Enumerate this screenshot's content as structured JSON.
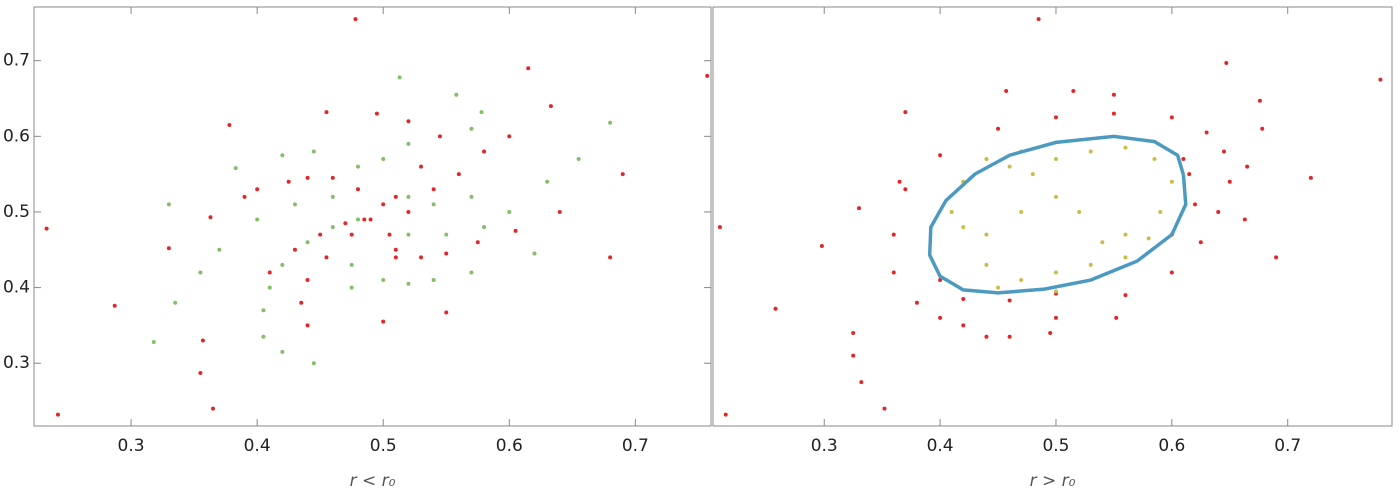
{
  "chart_data": [
    {
      "type": "scatter",
      "xlabel": "r < r₀",
      "xlim": [
        0.223,
        0.76
      ],
      "ylim": [
        0.217,
        0.771
      ],
      "xticks": [
        0.3,
        0.4,
        0.5,
        0.6,
        0.7
      ],
      "yticks": [
        0.3,
        0.4,
        0.5,
        0.6,
        0.7
      ],
      "series": [
        {
          "color": "#86bd6b",
          "x": [
            0.33,
            0.335,
            0.318,
            0.355,
            0.37,
            0.383,
            0.42,
            0.445,
            0.513,
            0.558,
            0.578,
            0.68,
            0.655,
            0.63,
            0.62,
            0.57,
            0.54,
            0.52,
            0.445,
            0.42,
            0.405,
            0.405,
            0.41,
            0.42,
            0.44,
            0.46,
            0.48,
            0.475,
            0.475,
            0.5,
            0.52,
            0.55,
            0.58,
            0.6,
            0.52,
            0.54,
            0.57,
            0.58,
            0.57,
            0.52,
            0.5,
            0.48,
            0.46,
            0.43,
            0.4
          ],
          "y": [
            0.51,
            0.38,
            0.328,
            0.42,
            0.45,
            0.558,
            0.575,
            0.58,
            0.678,
            0.655,
            0.632,
            0.618,
            0.57,
            0.54,
            0.445,
            0.42,
            0.41,
            0.405,
            0.3,
            0.315,
            0.335,
            0.37,
            0.4,
            0.43,
            0.46,
            0.48,
            0.49,
            0.43,
            0.4,
            0.41,
            0.47,
            0.47,
            0.48,
            0.5,
            0.52,
            0.51,
            0.52,
            0.58,
            0.61,
            0.59,
            0.57,
            0.56,
            0.52,
            0.51,
            0.49
          ]
        },
        {
          "color": "#e0282a",
          "x": [
            0.233,
            0.242,
            0.287,
            0.355,
            0.357,
            0.365,
            0.378,
            0.363,
            0.39,
            0.4,
            0.455,
            0.478,
            0.495,
            0.615,
            0.633,
            0.757,
            0.69,
            0.68,
            0.64,
            0.605,
            0.55,
            0.5,
            0.33,
            0.425,
            0.52,
            0.575,
            0.41,
            0.43,
            0.45,
            0.47,
            0.485,
            0.44,
            0.435,
            0.44,
            0.455,
            0.475,
            0.49,
            0.51,
            0.53,
            0.55,
            0.505,
            0.51,
            0.52,
            0.54,
            0.56,
            0.58,
            0.6,
            0.5,
            0.48,
            0.46,
            0.44,
            0.51,
            0.53,
            0.545
          ],
          "y": [
            0.478,
            0.232,
            0.376,
            0.287,
            0.33,
            0.24,
            0.615,
            0.493,
            0.52,
            0.53,
            0.632,
            0.755,
            0.63,
            0.69,
            0.64,
            0.68,
            0.55,
            0.44,
            0.5,
            0.475,
            0.367,
            0.355,
            0.452,
            0.54,
            0.62,
            0.46,
            0.42,
            0.45,
            0.47,
            0.485,
            0.49,
            0.35,
            0.38,
            0.41,
            0.44,
            0.47,
            0.49,
            0.44,
            0.44,
            0.445,
            0.47,
            0.45,
            0.5,
            0.53,
            0.55,
            0.58,
            0.6,
            0.51,
            0.53,
            0.545,
            0.545,
            0.52,
            0.56,
            0.6
          ]
        }
      ]
    },
    {
      "type": "scatter",
      "xlabel": "r > r₀",
      "xlim": [
        0.204,
        0.79
      ],
      "ylim": [
        0.217,
        0.771
      ],
      "xticks": [
        0.3,
        0.4,
        0.5,
        0.6,
        0.7
      ],
      "series": [
        {
          "color": "#e0282a",
          "x": [
            0.21,
            0.215,
            0.258,
            0.298,
            0.33,
            0.325,
            0.325,
            0.332,
            0.352,
            0.365,
            0.37,
            0.457,
            0.485,
            0.515,
            0.55,
            0.647,
            0.676,
            0.678,
            0.665,
            0.663,
            0.69,
            0.72,
            0.78,
            0.552,
            0.495,
            0.46,
            0.44,
            0.36,
            0.38,
            0.4,
            0.42,
            0.5,
            0.56,
            0.6,
            0.625,
            0.64,
            0.65,
            0.645,
            0.63,
            0.6,
            0.55,
            0.5,
            0.45,
            0.4,
            0.37,
            0.36,
            0.4,
            0.42,
            0.46,
            0.5,
            0.6,
            0.615,
            0.61,
            0.62
          ],
          "y": [
            0.48,
            0.232,
            0.372,
            0.455,
            0.505,
            0.34,
            0.31,
            0.275,
            0.24,
            0.54,
            0.632,
            0.66,
            0.755,
            0.66,
            0.655,
            0.697,
            0.647,
            0.61,
            0.56,
            0.49,
            0.44,
            0.545,
            0.675,
            0.36,
            0.34,
            0.335,
            0.335,
            0.42,
            0.38,
            0.36,
            0.35,
            0.36,
            0.39,
            0.42,
            0.46,
            0.5,
            0.54,
            0.58,
            0.605,
            0.625,
            0.63,
            0.625,
            0.61,
            0.575,
            0.53,
            0.47,
            0.41,
            0.385,
            0.383,
            0.392,
            0.47,
            0.55,
            0.57,
            0.51
          ]
        },
        {
          "color": "#c9bd4a",
          "x": [
            0.42,
            0.44,
            0.47,
            0.5,
            0.53,
            0.56,
            0.585,
            0.6,
            0.59,
            0.56,
            0.54,
            0.52,
            0.5,
            0.48,
            0.46,
            0.47,
            0.44,
            0.42,
            0.41,
            0.44,
            0.47,
            0.5,
            0.53,
            0.56,
            0.58,
            0.45,
            0.5
          ],
          "y": [
            0.54,
            0.57,
            0.58,
            0.57,
            0.58,
            0.585,
            0.57,
            0.54,
            0.5,
            0.47,
            0.46,
            0.5,
            0.52,
            0.55,
            0.56,
            0.5,
            0.47,
            0.48,
            0.5,
            0.43,
            0.41,
            0.42,
            0.43,
            0.44,
            0.465,
            0.4,
            0.395
          ]
        },
        {
          "color": "#4d9ac0",
          "style": "line",
          "x": [
            0.61,
            0.605,
            0.585,
            0.55,
            0.5,
            0.46,
            0.43,
            0.405,
            0.392,
            0.391,
            0.4,
            0.42,
            0.45,
            0.49,
            0.53,
            0.57,
            0.6,
            0.612,
            0.61
          ],
          "y": [
            0.549,
            0.575,
            0.593,
            0.6,
            0.592,
            0.575,
            0.55,
            0.515,
            0.48,
            0.443,
            0.415,
            0.397,
            0.393,
            0.398,
            0.41,
            0.435,
            0.47,
            0.51,
            0.549
          ]
        }
      ]
    }
  ]
}
